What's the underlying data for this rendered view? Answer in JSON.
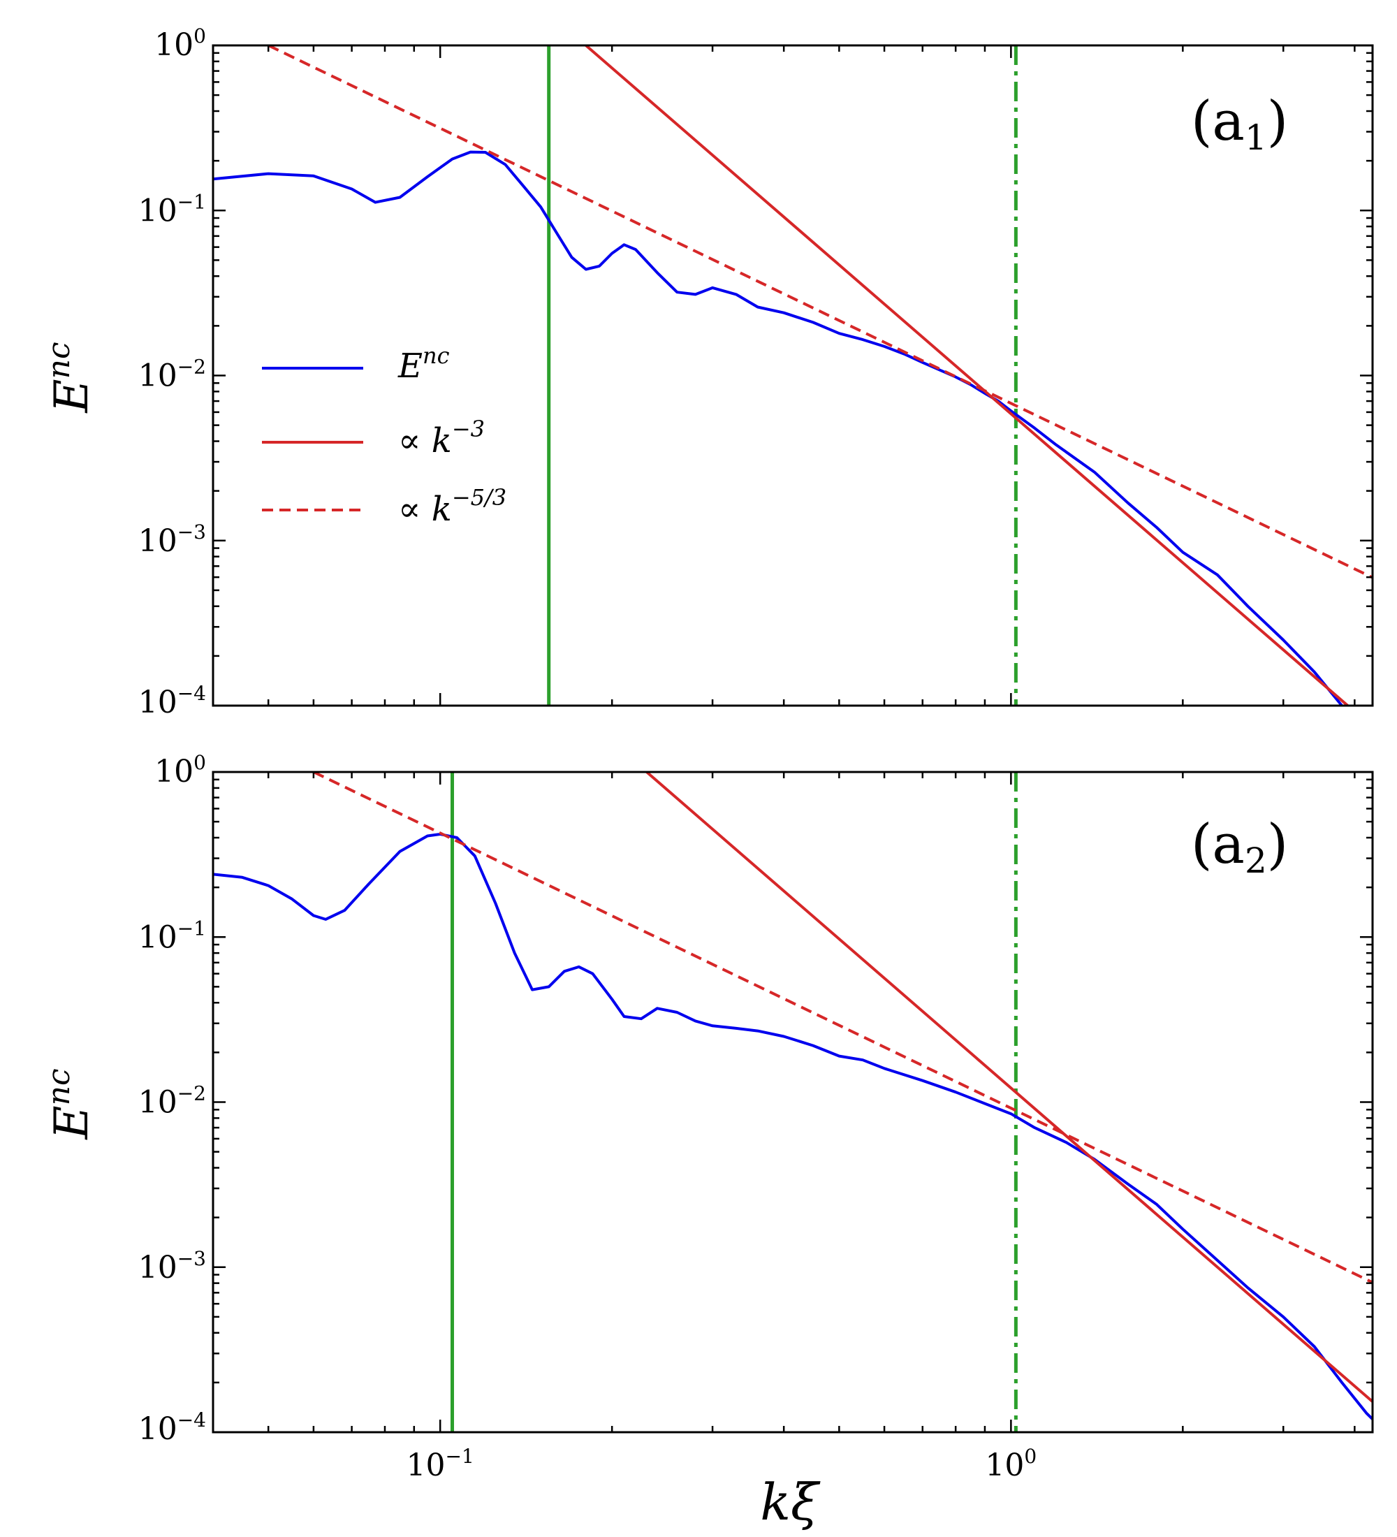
{
  "chart_data": [
    {
      "id": "a1",
      "type": "line",
      "scale": "log-log",
      "panel_label": "(a",
      "panel_sub": "1",
      "panel_close": ")",
      "ylabel": "E",
      "ylabel_sup": "nc",
      "xlabel": "",
      "xlim": [
        0.04,
        4.3
      ],
      "ylim": [
        0.0001,
        1
      ],
      "ytick_labels": [
        {
          "base": "10",
          "exp": "0",
          "value": 1
        },
        {
          "base": "10",
          "exp": "−1",
          "value": 0.1
        },
        {
          "base": "10",
          "exp": "−2",
          "value": 0.01
        },
        {
          "base": "10",
          "exp": "−3",
          "value": 0.001
        },
        {
          "base": "10",
          "exp": "−4",
          "value": 0.0001
        }
      ],
      "xtick_labels": [],
      "legend": {
        "position": "center-left",
        "entries": [
          {
            "label": "E",
            "sup": "nc",
            "style": "solid",
            "color": "#0000ee"
          },
          {
            "label": "∝ k",
            "sup": "−3",
            "style": "solid",
            "color": "#d62728"
          },
          {
            "label": "∝ k",
            "sup": "−5/3",
            "style": "dashed",
            "color": "#d62728"
          }
        ]
      },
      "series": [
        {
          "name": "E^nc",
          "color": "#0000ee",
          "style": "solid",
          "x": [
            0.04,
            0.05,
            0.06,
            0.07,
            0.077,
            0.085,
            0.095,
            0.105,
            0.113,
            0.12,
            0.13,
            0.14,
            0.15,
            0.16,
            0.17,
            0.18,
            0.19,
            0.2,
            0.21,
            0.22,
            0.24,
            0.26,
            0.28,
            0.3,
            0.33,
            0.36,
            0.4,
            0.45,
            0.5,
            0.55,
            0.6,
            0.65,
            0.7,
            0.75,
            0.8,
            0.85,
            0.9,
            0.95,
            1.0,
            1.1,
            1.2,
            1.4,
            1.6,
            1.8,
            2.0,
            2.3,
            2.6,
            3.0,
            3.4,
            3.8
          ],
          "y": [
            0.155,
            0.167,
            0.162,
            0.135,
            0.112,
            0.12,
            0.16,
            0.205,
            0.226,
            0.225,
            0.19,
            0.14,
            0.105,
            0.073,
            0.052,
            0.044,
            0.046,
            0.055,
            0.062,
            0.058,
            0.042,
            0.032,
            0.031,
            0.034,
            0.031,
            0.026,
            0.024,
            0.021,
            0.018,
            0.0165,
            0.015,
            0.0135,
            0.012,
            0.0108,
            0.0098,
            0.0088,
            0.0078,
            0.007,
            0.0061,
            0.0048,
            0.0038,
            0.0026,
            0.0017,
            0.0012,
            0.00085,
            0.00062,
            0.0004,
            0.00025,
            0.00016,
            0.0001
          ]
        },
        {
          "name": "k^-3 fit",
          "color": "#d62728",
          "style": "solid",
          "x": [
            0.18,
            4.3
          ],
          "y": [
            1.0,
            7.41e-05
          ]
        },
        {
          "name": "k^-5/3 fit",
          "color": "#d62728",
          "style": "dashed",
          "x": [
            0.05,
            4.3
          ],
          "y": [
            1.0,
            0.000597
          ]
        }
      ],
      "vlines": [
        {
          "x": 0.155,
          "style": "solid",
          "color": "#2ca02c"
        },
        {
          "x": 1.02,
          "style": "dashdot",
          "color": "#2ca02c"
        }
      ]
    },
    {
      "id": "a2",
      "type": "line",
      "scale": "log-log",
      "panel_label": "(a",
      "panel_sub": "2",
      "panel_close": ")",
      "ylabel": "E",
      "ylabel_sup": "nc",
      "xlabel": "kξ",
      "xlim": [
        0.04,
        4.3
      ],
      "ylim": [
        0.0001,
        1
      ],
      "ytick_labels": [
        {
          "base": "10",
          "exp": "0",
          "value": 1
        },
        {
          "base": "10",
          "exp": "−1",
          "value": 0.1
        },
        {
          "base": "10",
          "exp": "−2",
          "value": 0.01
        },
        {
          "base": "10",
          "exp": "−3",
          "value": 0.001
        },
        {
          "base": "10",
          "exp": "−4",
          "value": 0.0001
        }
      ],
      "xtick_labels": [
        {
          "base": "10",
          "exp": "−1",
          "value": 0.1
        },
        {
          "base": "10",
          "exp": "0",
          "value": 1
        }
      ],
      "series": [
        {
          "name": "E^nc",
          "color": "#0000ee",
          "style": "solid",
          "x": [
            0.04,
            0.045,
            0.05,
            0.055,
            0.06,
            0.063,
            0.068,
            0.075,
            0.085,
            0.095,
            0.1,
            0.107,
            0.115,
            0.125,
            0.135,
            0.145,
            0.155,
            0.165,
            0.175,
            0.185,
            0.2,
            0.21,
            0.225,
            0.24,
            0.26,
            0.28,
            0.3,
            0.33,
            0.36,
            0.4,
            0.45,
            0.5,
            0.55,
            0.6,
            0.7,
            0.8,
            0.9,
            1.0,
            1.1,
            1.25,
            1.4,
            1.6,
            1.8,
            2.0,
            2.3,
            2.6,
            3.0,
            3.4,
            3.8,
            4.2,
            4.3
          ],
          "y": [
            0.24,
            0.23,
            0.205,
            0.17,
            0.135,
            0.128,
            0.145,
            0.21,
            0.33,
            0.41,
            0.42,
            0.4,
            0.31,
            0.16,
            0.08,
            0.048,
            0.05,
            0.062,
            0.066,
            0.06,
            0.042,
            0.033,
            0.032,
            0.037,
            0.035,
            0.031,
            0.029,
            0.028,
            0.027,
            0.025,
            0.022,
            0.019,
            0.018,
            0.016,
            0.0135,
            0.0115,
            0.0098,
            0.0085,
            0.007,
            0.0057,
            0.0045,
            0.0032,
            0.0024,
            0.0017,
            0.0011,
            0.00075,
            0.0005,
            0.00033,
            0.0002,
            0.00013,
            0.00012
          ]
        },
        {
          "name": "k^-3 fit",
          "color": "#d62728",
          "style": "solid",
          "x": [
            0.23,
            4.3
          ],
          "y": [
            1.0,
            0.0001531
          ]
        },
        {
          "name": "k^-5/3 fit",
          "color": "#d62728",
          "style": "dashed",
          "x": [
            0.06,
            4.3
          ],
          "y": [
            1.0,
            0.000808
          ]
        }
      ],
      "vlines": [
        {
          "x": 0.105,
          "style": "solid",
          "color": "#2ca02c"
        },
        {
          "x": 1.02,
          "style": "dashdot",
          "color": "#2ca02c"
        }
      ]
    }
  ]
}
